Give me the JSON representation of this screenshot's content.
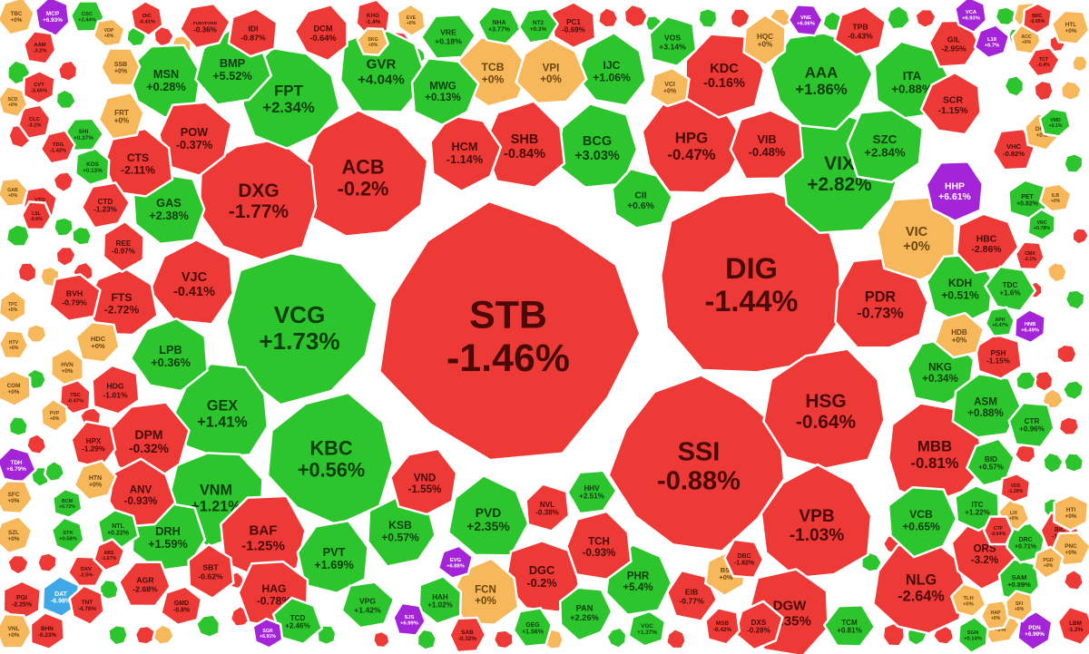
{
  "chart_data": {
    "type": "heatmap",
    "title": "",
    "colors": {
      "up": "#2dc52d",
      "down": "#ed3a36",
      "flat": "#f7b75b",
      "ceiling": "#a424d8",
      "floor": "#3fa8e6",
      "text_up": "#0c3d0c",
      "text_down": "#4a0a08",
      "text_flat": "#6b4510",
      "text_ceiling": "#ffffff"
    },
    "cells": [
      {
        "ticker": "STB",
        "change": "-1.46%",
        "pct": -1.46,
        "size": 6
      },
      {
        "ticker": "DIG",
        "change": "-1.44%",
        "pct": -1.44,
        "size": 5
      },
      {
        "ticker": "SSI",
        "change": "-0.88%",
        "pct": -0.88,
        "size": 5
      },
      {
        "ticker": "VCG",
        "change": "+1.73%",
        "pct": 1.73,
        "size": 4
      },
      {
        "ticker": "KBC",
        "change": "+0.56%",
        "pct": 0.56,
        "size": 4
      },
      {
        "ticker": "ACB",
        "change": "-0.2%",
        "pct": -0.2,
        "size": 4
      },
      {
        "ticker": "DXG",
        "change": "-1.77%",
        "pct": -1.77,
        "size": 4
      },
      {
        "ticker": "VIX",
        "change": "+2.82%",
        "pct": 2.82,
        "size": 4
      },
      {
        "ticker": "HSG",
        "change": "-0.64%",
        "pct": -0.64,
        "size": 4
      },
      {
        "ticker": "VPB",
        "change": "-1.03%",
        "pct": -1.03,
        "size": 3
      },
      {
        "ticker": "FPT",
        "change": "+2.34%",
        "pct": 2.34,
        "size": 3
      },
      {
        "ticker": "GEX",
        "change": "+1.41%",
        "pct": 1.41,
        "size": 3
      },
      {
        "ticker": "AAA",
        "change": "+1.86%",
        "pct": 1.86,
        "size": 3
      },
      {
        "ticker": "MBB",
        "change": "-0.81%",
        "pct": -0.81,
        "size": 3
      },
      {
        "ticker": "PDR",
        "change": "-0.73%",
        "pct": -0.73,
        "size": 3
      },
      {
        "ticker": "HPG",
        "change": "-0.47%",
        "pct": -0.47,
        "size": 3
      },
      {
        "ticker": "VNM",
        "change": "+1.21%",
        "pct": 1.21,
        "size": 3
      },
      {
        "ticker": "NLG",
        "change": "-2.64%",
        "pct": -2.64,
        "size": 3
      },
      {
        "ticker": "VIC",
        "change": "+0%",
        "pct": 0,
        "size": 3
      },
      {
        "ticker": "DGW",
        "change": "-1.35%",
        "pct": -1.35,
        "size": 3
      },
      {
        "ticker": "BAF",
        "change": "-1.25%",
        "pct": -1.25,
        "size": 3
      },
      {
        "ticker": "GVR",
        "change": "+4.04%",
        "pct": 4.04,
        "size": 3
      },
      {
        "ticker": "BCG",
        "change": "+3.03%",
        "pct": 3.03,
        "size": 2
      },
      {
        "ticker": "SHB",
        "change": "-0.84%",
        "pct": -0.84,
        "size": 2
      },
      {
        "ticker": "KDC",
        "change": "-0.16%",
        "pct": -0.16,
        "size": 2
      },
      {
        "ticker": "VIB",
        "change": "-0.48%",
        "pct": -0.48,
        "size": 2
      },
      {
        "ticker": "SZC",
        "change": "+2.84%",
        "pct": 2.84,
        "size": 2
      },
      {
        "ticker": "ITA",
        "change": "+0.88%",
        "pct": 0.88,
        "size": 2
      },
      {
        "ticker": "MSN",
        "change": "+0.28%",
        "pct": 0.28,
        "size": 2
      },
      {
        "ticker": "BMP",
        "change": "+5.52%",
        "pct": 5.52,
        "size": 2
      },
      {
        "ticker": "POW",
        "change": "-0.37%",
        "pct": -0.37,
        "size": 2
      },
      {
        "ticker": "CTS",
        "change": "-2.11%",
        "pct": -2.11,
        "size": 2
      },
      {
        "ticker": "GAS",
        "change": "+2.38%",
        "pct": 2.38,
        "size": 2
      },
      {
        "ticker": "VJC",
        "change": "-0.41%",
        "pct": -0.41,
        "size": 2
      },
      {
        "ticker": "LPB",
        "change": "+0.36%",
        "pct": 0.36,
        "size": 2
      },
      {
        "ticker": "DPM",
        "change": "-0.32%",
        "pct": -0.32,
        "size": 2
      },
      {
        "ticker": "HCM",
        "change": "-1.14%",
        "pct": -1.14,
        "size": 2
      },
      {
        "ticker": "MWG",
        "change": "+0.13%",
        "pct": 0.13,
        "size": 2
      },
      {
        "ticker": "TCB",
        "change": "+0%",
        "pct": 0,
        "size": 2
      },
      {
        "ticker": "VPI",
        "change": "+0%",
        "pct": 0,
        "size": 2
      },
      {
        "ticker": "IJC",
        "change": "+1.06%",
        "pct": 1.06,
        "size": 2
      },
      {
        "ticker": "KDH",
        "change": "+0.51%",
        "pct": 0.51,
        "size": 2
      },
      {
        "ticker": "NKG",
        "change": "+0.34%",
        "pct": 0.34,
        "size": 2
      },
      {
        "ticker": "ASM",
        "change": "+0.88%",
        "pct": 0.88,
        "size": 2
      },
      {
        "ticker": "PVD",
        "change": "+2.35%",
        "pct": 2.35,
        "size": 2
      },
      {
        "ticker": "DGC",
        "change": "-0.2%",
        "pct": -0.2,
        "size": 2
      },
      {
        "ticker": "FCN",
        "change": "+0%",
        "pct": 0,
        "size": 2
      },
      {
        "ticker": "KSB",
        "change": "+0.57%",
        "pct": 0.57,
        "size": 2
      },
      {
        "ticker": "PVT",
        "change": "+1.69%",
        "pct": 1.69,
        "size": 2
      },
      {
        "ticker": "HAG",
        "change": "-0.78%",
        "pct": -0.78,
        "size": 2
      },
      {
        "ticker": "ORS",
        "change": "-3.2%",
        "pct": -3.2,
        "size": 2
      },
      {
        "ticker": "VCB",
        "change": "+0.65%",
        "pct": 0.65,
        "size": 2
      },
      {
        "ticker": "DRH",
        "change": "+1.59%",
        "pct": 1.59,
        "size": 2
      },
      {
        "ticker": "ANV",
        "change": "-0.93%",
        "pct": -0.93,
        "size": 2
      },
      {
        "ticker": "FTS",
        "change": "-2.72%",
        "pct": -2.72,
        "size": 2
      },
      {
        "ticker": "VND",
        "change": "-1.55%",
        "pct": -1.55,
        "size": 2
      },
      {
        "ticker": "CII",
        "change": "+0.6%",
        "pct": 0.6,
        "size": 2
      },
      {
        "ticker": "PHR",
        "change": "+5.4%",
        "pct": 5.4,
        "size": 2
      },
      {
        "ticker": "TCH",
        "change": "-0.93%",
        "pct": -0.93,
        "size": 2
      },
      {
        "ticker": "SCR",
        "change": "-1.15%",
        "pct": -1.15,
        "size": 2
      },
      {
        "ticker": "HHP",
        "change": "+6.61%",
        "pct": 6.61,
        "size": 2
      },
      {
        "ticker": "HBC",
        "change": "-2.86%",
        "pct": -2.86,
        "size": 2
      },
      {
        "ticker": "IDI",
        "change": "-0.87%",
        "pct": -0.87,
        "size": 1
      },
      {
        "ticker": "DCM",
        "change": "-0.64%",
        "pct": -0.64,
        "size": 1
      },
      {
        "ticker": "VRE",
        "change": "+0.18%",
        "pct": 0.18,
        "size": 1
      },
      {
        "ticker": "VOS",
        "change": "+3.14%",
        "pct": 3.14,
        "size": 1
      },
      {
        "ticker": "HQC",
        "change": "+0%",
        "pct": 0,
        "size": 1
      },
      {
        "ticker": "VCI",
        "change": "+0%",
        "pct": 0,
        "size": 1
      },
      {
        "ticker": "TPB",
        "change": "-0.43%",
        "pct": -0.43,
        "size": 1
      },
      {
        "ticker": "GIL",
        "change": "-2.95%",
        "pct": -2.95,
        "size": 1
      },
      {
        "ticker": "SSB",
        "change": "+0%",
        "pct": 0,
        "size": 1
      },
      {
        "ticker": "FRT",
        "change": "+0%",
        "pct": 0,
        "size": 1
      },
      {
        "ticker": "HDC",
        "change": "+0%",
        "pct": 0,
        "size": 1
      },
      {
        "ticker": "HDG",
        "change": "-1.01%",
        "pct": -1.01,
        "size": 1
      },
      {
        "ticker": "HPX",
        "change": "-1.29%",
        "pct": -1.29,
        "size": 1
      },
      {
        "ticker": "REE",
        "change": "-0.97%",
        "pct": -0.97,
        "size": 1
      },
      {
        "ticker": "CTD",
        "change": "-1.23%",
        "pct": -1.23,
        "size": 1
      },
      {
        "ticker": "BVH",
        "change": "-0.79%",
        "pct": -0.79,
        "size": 1
      },
      {
        "ticker": "NTL",
        "change": "+0.22%",
        "pct": 0.22,
        "size": 1
      },
      {
        "ticker": "AGR",
        "change": "-2.68%",
        "pct": -2.68,
        "size": 1
      },
      {
        "ticker": "SBT",
        "change": "-0.62%",
        "pct": -0.62,
        "size": 1
      },
      {
        "ticker": "GMD",
        "change": "-0.8%",
        "pct": -0.8,
        "size": 1
      },
      {
        "ticker": "TCD",
        "change": "+2.46%",
        "pct": 2.46,
        "size": 1
      },
      {
        "ticker": "VPG",
        "change": "+1.42%",
        "pct": 1.42,
        "size": 1
      },
      {
        "ticker": "HAH",
        "change": "+1.02%",
        "pct": 1.02,
        "size": 1
      },
      {
        "ticker": "HHV",
        "change": "+2.51%",
        "pct": 2.51,
        "size": 1
      },
      {
        "ticker": "NVL",
        "change": "-0.38%",
        "pct": -0.38,
        "size": 1
      },
      {
        "ticker": "PAN",
        "change": "+2.26%",
        "pct": 2.26,
        "size": 1
      },
      {
        "ticker": "EIB",
        "change": "-0.77%",
        "pct": -0.77,
        "size": 1
      },
      {
        "ticker": "BSI",
        "change": "+0%",
        "pct": 0,
        "size": 1
      },
      {
        "ticker": "DXS",
        "change": "-0.28%",
        "pct": -0.28,
        "size": 1
      },
      {
        "ticker": "DBC",
        "change": "-1.82%",
        "pct": -1.82,
        "size": 1
      },
      {
        "ticker": "TCM",
        "change": "+0.81%",
        "pct": 0.81,
        "size": 1
      },
      {
        "ticker": "PSH",
        "change": "-1.15%",
        "pct": -1.15,
        "size": 1
      },
      {
        "ticker": "HDB",
        "change": "+0%",
        "pct": 0,
        "size": 1
      },
      {
        "ticker": "TDC",
        "change": "+1.6%",
        "pct": 1.6,
        "size": 1
      },
      {
        "ticker": "ITC",
        "change": "+1.22%",
        "pct": 1.22,
        "size": 1
      },
      {
        "ticker": "BID",
        "change": "+0.57%",
        "pct": 0.57,
        "size": 1
      },
      {
        "ticker": "CTR",
        "change": "+0.96%",
        "pct": 0.96,
        "size": 1
      },
      {
        "ticker": "PET",
        "change": "+0.82%",
        "pct": 0.82,
        "size": 1
      },
      {
        "ticker": "VHC",
        "change": "-0.82%",
        "pct": -0.82,
        "size": 1
      },
      {
        "ticker": "SAM",
        "change": "+0.89%",
        "pct": 0.89,
        "size": 1
      },
      {
        "ticker": "DRC",
        "change": "+0.71%",
        "pct": 0.71,
        "size": 1
      },
      {
        "ticker": "BIC",
        "change": "-1.4%",
        "pct": -1.4,
        "size": 1
      },
      {
        "ticker": "TDH",
        "change": "+6.79%",
        "pct": 6.79,
        "size": 1
      },
      {
        "ticker": "DAT",
        "change": "-6.98%",
        "pct": -6.98,
        "size": 1
      },
      {
        "ticker": "HTN",
        "change": "+0%",
        "pct": 0,
        "size": 1
      },
      {
        "ticker": "HVN",
        "change": "+0%",
        "pct": 0,
        "size": 1
      },
      {
        "ticker": "PC1",
        "change": "-0.69%",
        "pct": -0.69,
        "size": 1
      },
      {
        "ticker": "NT2",
        "change": "+0.3%",
        "pct": 0.3,
        "size": 1
      },
      {
        "ticker": "NHA",
        "change": "+3.77%",
        "pct": 3.77,
        "size": 1
      },
      {
        "ticker": "DHM",
        "change": "+0%",
        "pct": 0,
        "size": 1
      },
      {
        "ticker": "EVG",
        "change": "+6.88%",
        "pct": 6.88,
        "size": 1
      },
      {
        "ticker": "KOS",
        "change": "+0.13%",
        "pct": 0.13,
        "size": 1
      },
      {
        "ticker": "SHI",
        "change": "+0.37%",
        "pct": 0.37,
        "size": 1
      },
      {
        "ticker": "MCP",
        "change": "+6.93%",
        "pct": 6.93,
        "size": 1
      },
      {
        "ticker": "CSC",
        "change": "+2.44%",
        "pct": 2.44,
        "size": 1
      },
      {
        "ticker": "FUEVFVND",
        "change": "-0.36%",
        "pct": -0.36,
        "size": 1
      },
      {
        "ticker": "KHG",
        "change": "-1.4%",
        "pct": -1.4,
        "size": 1
      },
      {
        "ticker": "DIC",
        "change": "-0.41%",
        "pct": -0.41,
        "size": 1
      },
      {
        "ticker": "VTO",
        "change": "-0.1%",
        "pct": -0.1,
        "size": 1
      },
      {
        "ticker": "LSL",
        "change": "-0.6%",
        "pct": -0.6,
        "size": 1
      },
      {
        "ticker": "PGI",
        "change": "-2.25%",
        "pct": -2.25,
        "size": 1
      },
      {
        "ticker": "VNL",
        "change": "+0%",
        "pct": 0,
        "size": 1
      },
      {
        "ticker": "BHN",
        "change": "-0.23%",
        "pct": -0.23,
        "size": 1
      },
      {
        "ticker": "SZL",
        "change": "+0%",
        "pct": 0,
        "size": 1
      },
      {
        "ticker": "SFC",
        "change": "+0%",
        "pct": 0,
        "size": 1
      },
      {
        "ticker": "COM",
        "change": "+0%",
        "pct": 0,
        "size": 1
      },
      {
        "ticker": "TBC",
        "change": "+0%",
        "pct": 0,
        "size": 1
      },
      {
        "ticker": "HTL",
        "change": "+0%",
        "pct": 0,
        "size": 1
      },
      {
        "ticker": "HTI",
        "change": "+0%",
        "pct": 0,
        "size": 1
      },
      {
        "ticker": "PNC",
        "change": "+0%",
        "pct": 0,
        "size": 1
      },
      {
        "ticker": "LBM",
        "change": "-1.2%",
        "pct": -1.2,
        "size": 1
      },
      {
        "ticker": "PDN",
        "change": "+6.99%",
        "pct": 6.99,
        "size": 1
      },
      {
        "ticker": "TNC",
        "change": "+0%",
        "pct": 0,
        "size": 1
      },
      {
        "ticker": "SJS",
        "change": "+6.99%",
        "pct": 6.99,
        "size": 1
      },
      {
        "ticker": "SGR",
        "change": "+6.91%",
        "pct": 6.91,
        "size": 1
      },
      {
        "ticker": "HNB",
        "change": "+6.49%",
        "pct": 6.49,
        "size": 1
      },
      {
        "ticker": "ILB",
        "change": "+0%",
        "pct": 0,
        "size": 1
      },
      {
        "ticker": "CMX",
        "change": "-2.1%",
        "pct": -2.1,
        "size": 1
      },
      {
        "ticker": "CLC",
        "change": "-3.1%",
        "pct": -3.1,
        "size": 1
      },
      {
        "ticker": "AAM",
        "change": "-3.2%",
        "pct": -3.2,
        "size": 1
      },
      {
        "ticker": "CVT",
        "change": "-3.65%",
        "pct": -3.65,
        "size": 1
      },
      {
        "ticker": "TDG",
        "change": "-1.42%",
        "pct": -1.42,
        "size": 1
      },
      {
        "ticker": "VRC",
        "change": "+0.78%",
        "pct": 0.78,
        "size": 1
      },
      {
        "ticker": "TRA",
        "change": "+0%",
        "pct": 0,
        "size": 1
      },
      {
        "ticker": "ACC",
        "change": "+0%",
        "pct": 0,
        "size": 1
      },
      {
        "ticker": "BRC",
        "change": "-0.45%",
        "pct": -0.45,
        "size": 1
      },
      {
        "ticker": "TCT",
        "change": "-0.4%",
        "pct": -0.4,
        "size": 1
      },
      {
        "ticker": "LIX",
        "change": "+0%",
        "pct": 0,
        "size": 1
      },
      {
        "ticker": "VDS",
        "change": "-1.28%",
        "pct": -1.28,
        "size": 1
      },
      {
        "ticker": "TLH",
        "change": "+0%",
        "pct": 0,
        "size": 1
      },
      {
        "ticker": "HAP",
        "change": "+0%",
        "pct": 0,
        "size": 1
      },
      {
        "ticker": "SFI",
        "change": "+0%",
        "pct": 0,
        "size": 1
      },
      {
        "ticker": "PGD",
        "change": "+0%",
        "pct": 0,
        "size": 1
      },
      {
        "ticker": "SGN",
        "change": "+0.14%",
        "pct": 0.14,
        "size": 1
      },
      {
        "ticker": "CTF",
        "change": "-0.64%",
        "pct": -0.64,
        "size": 1
      },
      {
        "ticker": "MSB",
        "change": "-0.42%",
        "pct": -0.42,
        "size": 1
      },
      {
        "ticker": "VGC",
        "change": "+1.37%",
        "pct": 1.37,
        "size": 1
      },
      {
        "ticker": "GEG",
        "change": "+1.56%",
        "pct": 1.56,
        "size": 1
      },
      {
        "ticker": "SAB",
        "change": "-0.32%",
        "pct": -0.32,
        "size": 1
      },
      {
        "ticker": "TNT",
        "change": "-4.76%",
        "pct": -4.76,
        "size": 1
      },
      {
        "ticker": "DXV",
        "change": "-2.5%",
        "pct": -2.5,
        "size": 1
      },
      {
        "ticker": "STK",
        "change": "+0.58%",
        "pct": 0.58,
        "size": 1
      },
      {
        "ticker": "BCM",
        "change": "+0.72%",
        "pct": 0.72,
        "size": 1
      },
      {
        "ticker": "ABS",
        "change": "-1.67%",
        "pct": -1.67,
        "size": 1
      },
      {
        "ticker": "TSC",
        "change": "-0.47%",
        "pct": -0.47,
        "size": 1
      },
      {
        "ticker": "HTV",
        "change": "+0%",
        "pct": 0,
        "size": 1
      },
      {
        "ticker": "PVP",
        "change": "+0%",
        "pct": 0,
        "size": 1
      },
      {
        "ticker": "VDP",
        "change": "+0%",
        "pct": 0,
        "size": 1
      },
      {
        "ticker": "SKG",
        "change": "+0%",
        "pct": 0,
        "size": 1
      },
      {
        "ticker": "EVE",
        "change": "+0%",
        "pct": 0,
        "size": 1
      },
      {
        "ticker": "GAB",
        "change": "+0%",
        "pct": 0,
        "size": 1
      },
      {
        "ticker": "SCD",
        "change": "+0%",
        "pct": 0,
        "size": 1
      },
      {
        "ticker": "TPC",
        "change": "+0%",
        "pct": 0,
        "size": 1
      },
      {
        "ticker": "VNE",
        "change": "+6.06%",
        "pct": 6.06,
        "size": 1
      },
      {
        "ticker": "VCA",
        "change": "+6.93%",
        "pct": 6.93,
        "size": 1
      },
      {
        "ticker": "APH",
        "change": "+0.47%",
        "pct": 0.47,
        "size": 1
      },
      {
        "ticker": "VMD",
        "change": "+0.1%",
        "pct": 0.1,
        "size": 1
      },
      {
        "ticker": "L18",
        "change": "+6.7%",
        "pct": 6.7,
        "size": 1
      }
    ]
  }
}
